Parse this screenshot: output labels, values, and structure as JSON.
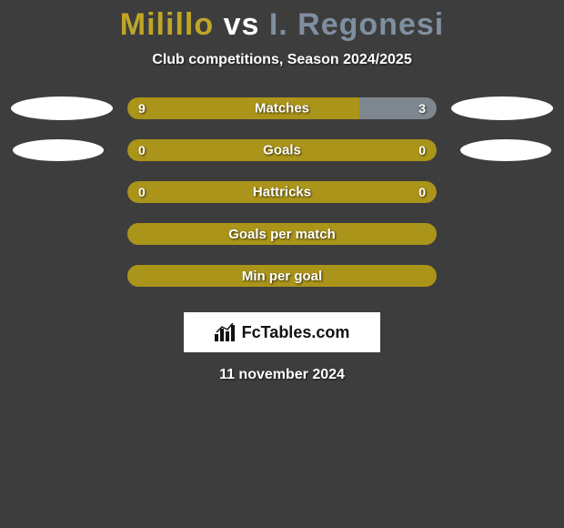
{
  "header": {
    "player1": "Milillo",
    "vs": "vs",
    "player2": "I. Regonesi",
    "subtitle": "Club competitions, Season 2024/2025"
  },
  "colors": {
    "player1": "#aa941a",
    "player2": "#7e878f",
    "player1_title": "#bfa627",
    "player2_title": "#7f8fa0",
    "background": "#3d3d3d",
    "ellipse": "#ffffff",
    "text": "#ffffff"
  },
  "stats": [
    {
      "label": "Matches",
      "left_value": "9",
      "right_value": "3",
      "left_num": 9,
      "right_num": 3,
      "left_pct": 75,
      "show_ellipses": "large",
      "split": true
    },
    {
      "label": "Goals",
      "left_value": "0",
      "right_value": "0",
      "left_num": 0,
      "right_num": 0,
      "left_pct": 100,
      "show_ellipses": "small",
      "split": false,
      "fill": "player1"
    },
    {
      "label": "Hattricks",
      "left_value": "0",
      "right_value": "0",
      "left_num": 0,
      "right_num": 0,
      "left_pct": 100,
      "show_ellipses": "none",
      "split": false,
      "fill": "player1"
    }
  ],
  "single_bars": [
    {
      "label": "Goals per match",
      "fill": "player1"
    },
    {
      "label": "Min per goal",
      "fill": "player1"
    }
  ],
  "logo": {
    "text": "FcTables.com"
  },
  "date": "11 november 2024"
}
